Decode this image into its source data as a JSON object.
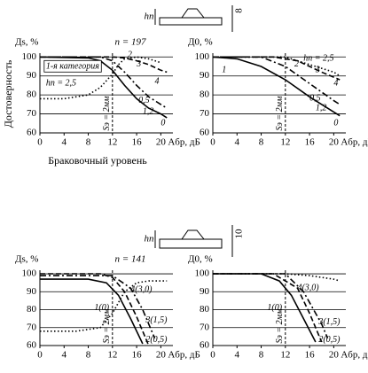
{
  "figure": {
    "ylabel": "Достоверность",
    "xlabel": "Браковочный уровень",
    "diagrams": [
      {
        "h": "hп",
        "thickness": "8"
      },
      {
        "h": "hп",
        "thickness": "10"
      }
    ]
  },
  "chart_data": [
    {
      "type": "line",
      "title": "n = 197",
      "ylabel": "Дs, %",
      "xlabel": "Aбр, дБ",
      "xlim": [
        0,
        22
      ],
      "ylim": [
        60,
        102
      ],
      "xticks": [
        0,
        4,
        8,
        12,
        16,
        20
      ],
      "yticks": [
        60,
        70,
        80,
        90,
        100
      ],
      "grid": true,
      "vline": {
        "x": 12,
        "label": "Sэ = 2мм"
      },
      "series": [
        {
          "color": "#000",
          "dash": "solid",
          "x": [
            0,
            8,
            10,
            12,
            14,
            16,
            18,
            20,
            21
          ],
          "values": [
            100,
            99.5,
            98,
            93,
            85,
            78,
            73,
            70,
            68
          ]
        },
        {
          "color": "#000",
          "dash": "dashdot",
          "x": [
            0,
            10,
            12,
            14,
            16,
            18,
            20,
            21
          ],
          "values": [
            100,
            100,
            98,
            92,
            85,
            79,
            75,
            73
          ]
        },
        {
          "color": "#000",
          "dash": "dashed",
          "x": [
            0,
            12,
            14,
            16,
            18,
            20,
            21
          ],
          "values": [
            100,
            100,
            99.5,
            98,
            96,
            93,
            92
          ]
        },
        {
          "color": "#000",
          "dash": "dotted",
          "x": [
            0,
            4,
            8,
            10,
            12,
            13,
            14,
            16,
            18,
            20
          ],
          "values": [
            78,
            78,
            80,
            84,
            91,
            96,
            99,
            100,
            99,
            97
          ]
        }
      ],
      "annotations": [
        {
          "text": "1-я категория",
          "x": 1,
          "y": 95,
          "box": true
        },
        {
          "text": "hп = 2,5",
          "x": 1,
          "y": 86
        },
        {
          "text": "2",
          "x": 14.5,
          "y": 101
        },
        {
          "text": "3",
          "x": 16,
          "y": 96
        },
        {
          "text": "4",
          "x": 19,
          "y": 87
        },
        {
          "text": "0,5",
          "x": 16.3,
          "y": 77
        },
        {
          "text": "1,2",
          "x": 17,
          "y": 71
        },
        {
          "text": "0",
          "x": 20,
          "y": 65
        }
      ]
    },
    {
      "type": "line",
      "ylabel": "Д0, %",
      "xlabel": "Aбр, дБ",
      "xlim": [
        0,
        22
      ],
      "ylim": [
        60,
        102
      ],
      "xticks": [
        0,
        4,
        8,
        12,
        16,
        20
      ],
      "yticks": [
        60,
        70,
        80,
        90,
        100
      ],
      "grid": true,
      "vline": {
        "x": 12,
        "label": "Sэ = 2мм"
      },
      "series": [
        {
          "color": "#000",
          "dash": "solid",
          "x": [
            0,
            4,
            8,
            12,
            16,
            20,
            21
          ],
          "values": [
            100,
            99,
            95,
            88,
            79,
            71,
            69
          ]
        },
        {
          "color": "#000",
          "dash": "dashdot",
          "x": [
            0,
            8,
            12,
            16,
            20,
            21
          ],
          "values": [
            100,
            100,
            95,
            86,
            77,
            75
          ]
        },
        {
          "color": "#000",
          "dash": "dashed",
          "x": [
            0,
            10,
            14,
            18,
            21
          ],
          "values": [
            100,
            100,
            98,
            92,
            88
          ]
        },
        {
          "color": "#000",
          "dash": "dotted",
          "x": [
            0,
            12,
            16,
            20,
            21
          ],
          "values": [
            100,
            100,
            96,
            92,
            90
          ]
        }
      ],
      "annotations": [
        {
          "text": "1",
          "x": 1.5,
          "y": 93
        },
        {
          "text": "2",
          "x": 13.5,
          "y": 96
        },
        {
          "text": "hп = 2,5",
          "x": 15,
          "y": 99
        },
        {
          "text": "3",
          "x": 17,
          "y": 93
        },
        {
          "text": "4",
          "x": 20,
          "y": 86
        },
        {
          "text": "0,5",
          "x": 16,
          "y": 78
        },
        {
          "text": "1,2",
          "x": 17,
          "y": 73
        },
        {
          "text": "0",
          "x": 20,
          "y": 65
        }
      ]
    },
    {
      "type": "line",
      "title": "n = 141",
      "ylabel": "Дs, %",
      "xlabel": "Aбр, дБ",
      "xlim": [
        0,
        22
      ],
      "ylim": [
        60,
        102
      ],
      "xticks": [
        0,
        4,
        8,
        12,
        16,
        20
      ],
      "yticks": [
        60,
        70,
        80,
        90,
        100
      ],
      "grid": true,
      "vline": {
        "x": 12,
        "label": "Sэ = 2мм"
      },
      "series": [
        {
          "color": "#000",
          "dash": "solid",
          "x": [
            0,
            8,
            11,
            13,
            15,
            17
          ],
          "values": [
            97,
            97,
            95,
            88,
            75,
            61
          ]
        },
        {
          "color": "#000",
          "dash": "dashed",
          "x": [
            0,
            10,
            12,
            14,
            16,
            18
          ],
          "values": [
            100,
            100,
            98,
            90,
            76,
            60
          ]
        },
        {
          "color": "#000",
          "dash": "dashdot",
          "x": [
            0,
            12,
            15,
            17,
            19
          ],
          "values": [
            99,
            99,
            92,
            80,
            64
          ]
        },
        {
          "color": "#000",
          "dash": "dotted",
          "x": [
            0,
            6,
            10,
            12,
            14,
            16,
            18,
            21
          ],
          "values": [
            68,
            68,
            70,
            78,
            90,
            95,
            96,
            96
          ]
        }
      ],
      "annotations": [
        {
          "text": "4(3,0)",
          "x": 15,
          "y": 91
        },
        {
          "text": "1(0)",
          "x": 9,
          "y": 81
        },
        {
          "text": "3(1,5)",
          "x": 17.5,
          "y": 74
        },
        {
          "text": "2(0,5)",
          "x": 17.5,
          "y": 63
        }
      ]
    },
    {
      "type": "line",
      "ylabel": "Д0, %",
      "xlabel": "Aбр, дБ",
      "xlim": [
        0,
        22
      ],
      "ylim": [
        60,
        102
      ],
      "xticks": [
        0,
        4,
        8,
        12,
        16,
        20
      ],
      "yticks": [
        60,
        70,
        80,
        90,
        100
      ],
      "grid": true,
      "vline": {
        "x": 12,
        "label": "Sэ = 2мм"
      },
      "series": [
        {
          "color": "#000",
          "dash": "solid",
          "x": [
            0,
            8,
            11,
            13,
            15,
            17
          ],
          "values": [
            100,
            100,
            96,
            88,
            75,
            62
          ]
        },
        {
          "color": "#000",
          "dash": "dashed",
          "x": [
            0,
            10,
            14,
            16,
            18
          ],
          "values": [
            100,
            100,
            92,
            78,
            62
          ]
        },
        {
          "color": "#000",
          "dash": "dashdot",
          "x": [
            0,
            12,
            15,
            18,
            19
          ],
          "values": [
            100,
            100,
            90,
            72,
            64
          ]
        },
        {
          "color": "#000",
          "dash": "dotted",
          "x": [
            0,
            12,
            16,
            20,
            21
          ],
          "values": [
            100,
            100,
            99,
            97,
            96
          ]
        }
      ],
      "annotations": [
        {
          "text": "4(3,0)",
          "x": 14,
          "y": 92
        },
        {
          "text": "1(0)",
          "x": 9,
          "y": 81
        },
        {
          "text": "3(1,5)",
          "x": 17.5,
          "y": 73
        },
        {
          "text": "2(0,5)",
          "x": 17.5,
          "y": 63
        }
      ]
    }
  ]
}
